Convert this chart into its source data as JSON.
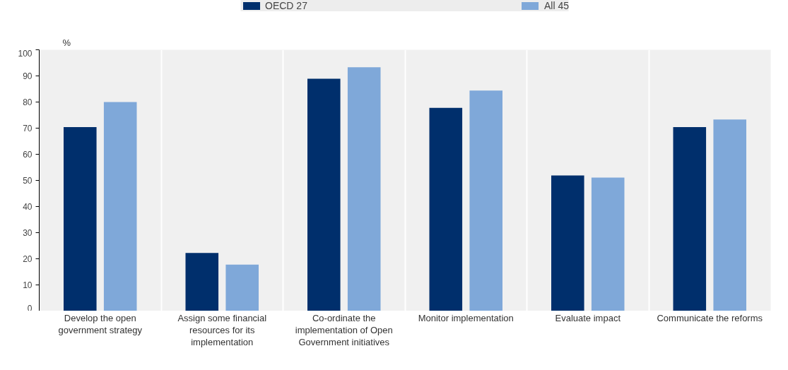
{
  "chart_data": {
    "type": "bar",
    "ylabel": "%",
    "categories": [
      "Develop the open government strategy",
      "Assign some financial resources for its implementation",
      "Co-ordinate the implementation of Open Government initiatives",
      "Monitor implementation",
      "Evaluate impact",
      "Communicate the reforms"
    ],
    "series": [
      {
        "name": "OECD 27",
        "color": "#002f6c",
        "values": [
          70.4,
          22.2,
          88.9,
          77.8,
          51.9,
          70.4
        ]
      },
      {
        "name": "All 45",
        "color": "#7fa8d9",
        "values": [
          80.0,
          17.8,
          93.3,
          84.4,
          51.1,
          73.3
        ]
      }
    ],
    "ylim": [
      0,
      100
    ],
    "yticks": [
      0,
      10,
      20,
      30,
      40,
      50,
      60,
      70,
      80,
      90,
      100
    ],
    "grid": "x",
    "legend": "top"
  }
}
